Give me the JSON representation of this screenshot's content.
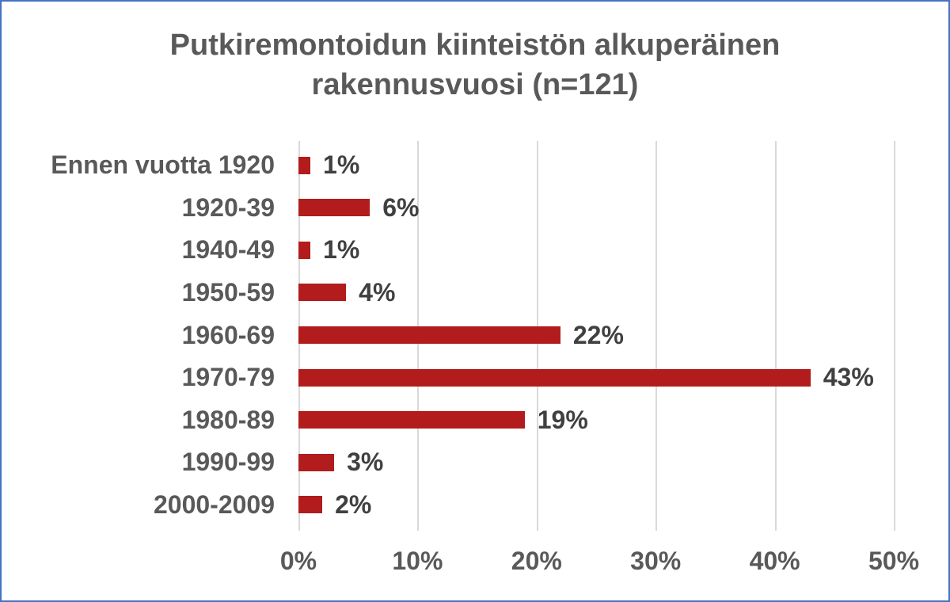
{
  "chart_data": {
    "type": "bar",
    "orientation": "horizontal",
    "title": "Putkiremontoidun kiinteistön alkuperäinen rakennusvuosi (n=121)",
    "categories": [
      "Ennen vuotta 1920",
      "1920-39",
      "1940-49",
      "1950-59",
      "1960-69",
      "1970-79",
      "1980-89",
      "1990-99",
      "2000-2009"
    ],
    "values": [
      1,
      6,
      1,
      4,
      22,
      43,
      19,
      3,
      2
    ],
    "value_labels": [
      "1%",
      "6%",
      "1%",
      "4%",
      "22%",
      "43%",
      "19%",
      "3%",
      "2%"
    ],
    "xlabel": "",
    "ylabel": "",
    "xlim": [
      0,
      50
    ],
    "xticks": [
      "0%",
      "10%",
      "20%",
      "30%",
      "40%",
      "50%"
    ],
    "xtick_values": [
      0,
      10,
      20,
      30,
      40,
      50
    ],
    "grid": true,
    "legend": false
  },
  "colors": {
    "bar": "#B21C1C",
    "frame_border": "#4472C4",
    "gridline": "#D9D9D9",
    "axis_text": "#595959",
    "title_text": "#595959",
    "value_text": "#404040",
    "background": "#FFFFFF"
  }
}
